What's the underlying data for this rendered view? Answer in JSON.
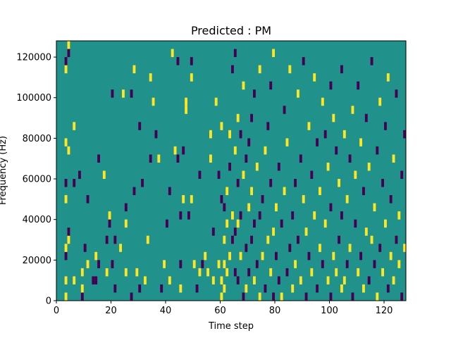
{
  "chart_data": {
    "type": "heatmap",
    "title": "Predicted : PM",
    "xlabel": "Time step",
    "ylabel": "Frequency (Hz)",
    "xlim": [
      0,
      128
    ],
    "ylim": [
      0,
      128000
    ],
    "x_ticks": [
      0,
      20,
      40,
      60,
      80,
      100,
      120
    ],
    "y_ticks": [
      0,
      20000,
      40000,
      60000,
      80000,
      100000,
      120000
    ],
    "n_time_steps": 128,
    "n_freq_bins": 32,
    "bin_hz": 4000,
    "value_levels": {
      "low": -1,
      "background": 0,
      "high": 1
    },
    "colors": {
      "low": "#440154",
      "background": "#21918c",
      "high": "#fde725"
    },
    "cells": [
      [
        3,
        0,
        1
      ],
      [
        3,
        2,
        1
      ],
      [
        3,
        5,
        -1
      ],
      [
        3,
        6,
        1
      ],
      [
        3,
        12,
        1
      ],
      [
        3,
        14,
        -1
      ],
      [
        3,
        19,
        1
      ],
      [
        3,
        28,
        1
      ],
      [
        3,
        29,
        -1
      ],
      [
        4,
        7,
        1
      ],
      [
        4,
        18,
        1
      ],
      [
        4,
        30,
        -1
      ],
      [
        4,
        31,
        1
      ],
      [
        4,
        8,
        -1
      ],
      [
        6,
        2,
        1
      ],
      [
        6,
        21,
        1
      ],
      [
        6,
        14,
        -1
      ],
      [
        8,
        15,
        -1
      ],
      [
        9,
        0,
        -1
      ],
      [
        9,
        1,
        1
      ],
      [
        9,
        3,
        1
      ],
      [
        10,
        6,
        -1
      ],
      [
        11,
        4,
        1
      ],
      [
        11,
        12,
        -1
      ],
      [
        13,
        2,
        -1
      ],
      [
        14,
        5,
        1
      ],
      [
        14,
        2,
        -1
      ],
      [
        15,
        17,
        -1
      ],
      [
        15,
        4,
        -1
      ],
      [
        17,
        15,
        1
      ],
      [
        18,
        7,
        -1
      ],
      [
        18,
        3,
        1
      ],
      [
        19,
        9,
        -1
      ],
      [
        19,
        10,
        1
      ],
      [
        20,
        4,
        -1
      ],
      [
        20,
        25,
        -1
      ],
      [
        21,
        7,
        -1
      ],
      [
        21,
        1,
        -1
      ],
      [
        23,
        6,
        1
      ],
      [
        24,
        25,
        1
      ],
      [
        25,
        11,
        -1
      ],
      [
        25,
        3,
        1
      ],
      [
        25,
        9,
        1
      ],
      [
        27,
        25,
        -1
      ],
      [
        27,
        0,
        -1
      ],
      [
        28,
        13,
        -1
      ],
      [
        28,
        28,
        1
      ],
      [
        29,
        3,
        1
      ],
      [
        30,
        21,
        -1
      ],
      [
        30,
        1,
        -1
      ],
      [
        31,
        14,
        -1
      ],
      [
        32,
        2,
        1
      ],
      [
        33,
        7,
        1
      ],
      [
        34,
        27,
        1
      ],
      [
        34,
        17,
        -1
      ],
      [
        35,
        24,
        1
      ],
      [
        36,
        20,
        -1
      ],
      [
        37,
        17,
        1
      ],
      [
        38,
        1,
        -1
      ],
      [
        39,
        4,
        1
      ],
      [
        40,
        9,
        -1
      ],
      [
        41,
        13,
        -1
      ],
      [
        41,
        2,
        1
      ],
      [
        42,
        30,
        1
      ],
      [
        43,
        18,
        1
      ],
      [
        44,
        17,
        -1
      ],
      [
        44,
        29,
        -1
      ],
      [
        45,
        10,
        -1
      ],
      [
        45,
        4,
        -1
      ],
      [
        45,
        1,
        1
      ],
      [
        46,
        12,
        1
      ],
      [
        46,
        18,
        -1
      ],
      [
        47,
        23,
        1
      ],
      [
        47,
        24,
        1
      ],
      [
        48,
        10,
        -1
      ],
      [
        49,
        12,
        1
      ],
      [
        49,
        27,
        1
      ],
      [
        49,
        29,
        -1
      ],
      [
        50,
        4,
        1
      ],
      [
        51,
        1,
        -1
      ],
      [
        52,
        3,
        1
      ],
      [
        52,
        15,
        -1
      ],
      [
        53,
        4,
        -1
      ],
      [
        54,
        5,
        1
      ],
      [
        55,
        3,
        1
      ],
      [
        56,
        17,
        1
      ],
      [
        56,
        20,
        1
      ],
      [
        57,
        2,
        1
      ],
      [
        57,
        8,
        -1
      ],
      [
        58,
        24,
        1
      ],
      [
        59,
        4,
        1
      ],
      [
        59,
        15,
        -1
      ],
      [
        60,
        0,
        1
      ],
      [
        60,
        2,
        1
      ],
      [
        60,
        12,
        -1
      ],
      [
        60,
        21,
        1
      ],
      [
        61,
        1,
        1
      ],
      [
        61,
        4,
        1
      ],
      [
        61,
        7,
        1
      ],
      [
        61,
        11,
        -1
      ],
      [
        62,
        3,
        1
      ],
      [
        62,
        9,
        1
      ],
      [
        62,
        13,
        1
      ],
      [
        63,
        5,
        1
      ],
      [
        63,
        16,
        -1
      ],
      [
        63,
        20,
        1
      ],
      [
        64,
        7,
        -1
      ],
      [
        64,
        28,
        -1
      ],
      [
        64,
        10,
        1
      ],
      [
        65,
        3,
        -1
      ],
      [
        65,
        8,
        -1
      ],
      [
        65,
        18,
        1
      ],
      [
        65,
        30,
        -1
      ],
      [
        66,
        2,
        -1
      ],
      [
        66,
        9,
        1
      ],
      [
        66,
        14,
        -1
      ],
      [
        66,
        22,
        1
      ],
      [
        67,
        5,
        1
      ],
      [
        67,
        10,
        -1
      ],
      [
        67,
        20,
        -1
      ],
      [
        68,
        0,
        -1
      ],
      [
        68,
        15,
        1
      ],
      [
        68,
        26,
        1
      ],
      [
        69,
        1,
        1
      ],
      [
        69,
        6,
        -1
      ],
      [
        69,
        17,
        -1
      ],
      [
        70,
        3,
        -1
      ],
      [
        70,
        11,
        1
      ],
      [
        70,
        19,
        -1
      ],
      [
        71,
        7,
        -1
      ],
      [
        71,
        13,
        1
      ],
      [
        71,
        22,
        -1
      ],
      [
        72,
        2,
        1
      ],
      [
        72,
        9,
        -1
      ],
      [
        72,
        25,
        -1
      ],
      [
        73,
        4,
        -1
      ],
      [
        73,
        16,
        1
      ],
      [
        74,
        0,
        1
      ],
      [
        74,
        10,
        -1
      ],
      [
        74,
        28,
        1
      ],
      [
        75,
        5,
        1
      ],
      [
        75,
        12,
        -1
      ],
      [
        76,
        1,
        -1
      ],
      [
        76,
        18,
        1
      ],
      [
        77,
        7,
        1
      ],
      [
        77,
        21,
        -1
      ],
      [
        78,
        3,
        1
      ],
      [
        78,
        14,
        -1
      ],
      [
        78,
        26,
        -1
      ],
      [
        79,
        0,
        -1
      ],
      [
        79,
        8,
        1
      ],
      [
        79,
        30,
        1
      ],
      [
        80,
        5,
        -1
      ],
      [
        80,
        11,
        1
      ],
      [
        81,
        2,
        -1
      ],
      [
        81,
        16,
        -1
      ],
      [
        82,
        0,
        1
      ],
      [
        82,
        9,
        -1
      ],
      [
        83,
        13,
        1
      ],
      [
        83,
        23,
        -1
      ],
      [
        84,
        3,
        -1
      ],
      [
        84,
        19,
        1
      ],
      [
        85,
        6,
        -1
      ],
      [
        85,
        28,
        1
      ],
      [
        86,
        1,
        1
      ],
      [
        86,
        10,
        -1
      ],
      [
        87,
        4,
        1
      ],
      [
        87,
        14,
        -1
      ],
      [
        88,
        7,
        -1
      ],
      [
        88,
        25,
        1
      ],
      [
        89,
        2,
        1
      ],
      [
        89,
        17,
        -1
      ],
      [
        90,
        12,
        1
      ],
      [
        90,
        29,
        -1
      ],
      [
        91,
        0,
        -1
      ],
      [
        91,
        8,
        1
      ],
      [
        92,
        5,
        -1
      ],
      [
        92,
        21,
        1
      ],
      [
        93,
        3,
        1
      ],
      [
        93,
        15,
        -1
      ],
      [
        94,
        10,
        1
      ],
      [
        94,
        27,
        1
      ],
      [
        95,
        1,
        -1
      ],
      [
        95,
        19,
        -1
      ],
      [
        96,
        6,
        1
      ],
      [
        96,
        13,
        1
      ],
      [
        97,
        4,
        -1
      ],
      [
        97,
        24,
        1
      ],
      [
        98,
        9,
        1
      ],
      [
        98,
        20,
        -1
      ],
      [
        99,
        2,
        1
      ],
      [
        99,
        16,
        1
      ],
      [
        100,
        0,
        -1
      ],
      [
        100,
        11,
        -1
      ],
      [
        100,
        26,
        -1
      ],
      [
        101,
        5,
        1
      ],
      [
        101,
        22,
        1
      ],
      [
        102,
        3,
        1
      ],
      [
        102,
        18,
        -1
      ],
      [
        103,
        7,
        -1
      ],
      [
        103,
        14,
        1
      ],
      [
        104,
        1,
        1
      ],
      [
        104,
        10,
        -1
      ],
      [
        104,
        28,
        -1
      ],
      [
        105,
        2,
        1
      ],
      [
        105,
        20,
        1
      ],
      [
        106,
        4,
        -1
      ],
      [
        106,
        12,
        1
      ],
      [
        107,
        6,
        1
      ],
      [
        107,
        17,
        -1
      ],
      [
        108,
        0,
        -1
      ],
      [
        108,
        23,
        1
      ],
      [
        109,
        9,
        -1
      ],
      [
        109,
        15,
        1
      ],
      [
        110,
        3,
        1
      ],
      [
        110,
        26,
        -1
      ],
      [
        111,
        5,
        -1
      ],
      [
        111,
        19,
        1
      ],
      [
        112,
        1,
        1
      ],
      [
        112,
        13,
        -1
      ],
      [
        113,
        8,
        1
      ],
      [
        113,
        22,
        -1
      ],
      [
        114,
        2,
        -1
      ],
      [
        114,
        16,
        1
      ],
      [
        115,
        7,
        1
      ],
      [
        115,
        29,
        -1
      ],
      [
        116,
        4,
        -1
      ],
      [
        116,
        11,
        1
      ],
      [
        117,
        0,
        1
      ],
      [
        117,
        18,
        -1
      ],
      [
        118,
        6,
        -1
      ],
      [
        118,
        24,
        1
      ],
      [
        119,
        3,
        1
      ],
      [
        119,
        14,
        -1
      ],
      [
        120,
        9,
        1
      ],
      [
        120,
        21,
        -1
      ],
      [
        121,
        1,
        -1
      ],
      [
        121,
        27,
        1
      ],
      [
        122,
        5,
        1
      ],
      [
        122,
        12,
        -1
      ],
      [
        123,
        2,
        1
      ],
      [
        123,
        17,
        1
      ],
      [
        124,
        7,
        -1
      ],
      [
        124,
        25,
        -1
      ],
      [
        125,
        4,
        1
      ],
      [
        125,
        10,
        1
      ],
      [
        126,
        0,
        -1
      ],
      [
        126,
        15,
        -1
      ],
      [
        127,
        6,
        1
      ],
      [
        127,
        20,
        -1
      ]
    ]
  }
}
